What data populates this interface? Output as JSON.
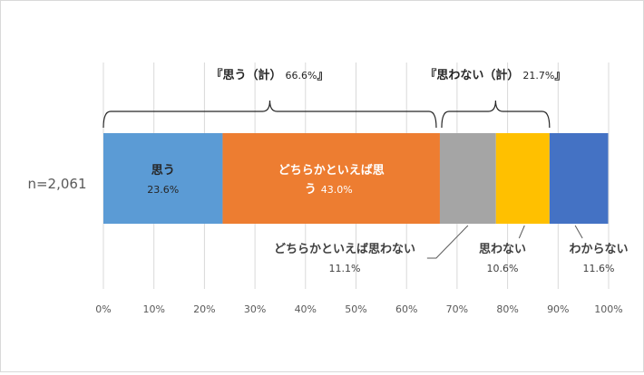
{
  "chart_data": {
    "type": "bar",
    "orientation": "horizontal-stacked-100",
    "category": "n=2,061",
    "xlim": [
      0,
      100
    ],
    "xticks": [
      0,
      10,
      20,
      30,
      40,
      50,
      60,
      70,
      80,
      90,
      100
    ],
    "tick_suffix": "%",
    "grid": true,
    "segments": [
      {
        "name": "思う",
        "name_line2": "",
        "value": 23.6,
        "value_label": "23.6%",
        "color": "#5b9bd5",
        "label_color": "#262626",
        "label_inside": true
      },
      {
        "name": "どちらかといえば思",
        "name_line2": "う",
        "value": 43.0,
        "value_label": "43.0%",
        "color": "#ed7d31",
        "label_color": "#ffffff",
        "label_inside": true
      },
      {
        "name": "どちらかといえば思わない",
        "name_line2": "",
        "value": 11.1,
        "value_label": "11.1%",
        "color": "#a5a5a5",
        "label_color": "#404040",
        "label_inside": false
      },
      {
        "name": "思わない",
        "name_line2": "",
        "value": 10.6,
        "value_label": "10.6%",
        "color": "#ffc000",
        "label_color": "#404040",
        "label_inside": false
      },
      {
        "name": "わからない",
        "name_line2": "",
        "value": 11.6,
        "value_label": "11.6%",
        "color": "#4472c4",
        "label_color": "#404040",
        "label_inside": false
      }
    ],
    "brackets": [
      {
        "label": "『思う（計）",
        "value_label": "66.6%",
        "close": "』",
        "from": 0,
        "to": 66.6
      },
      {
        "label": "『思わない（計）",
        "value_label": "21.7%",
        "close": "』",
        "from": 66.6,
        "to": 88.3
      }
    ]
  }
}
